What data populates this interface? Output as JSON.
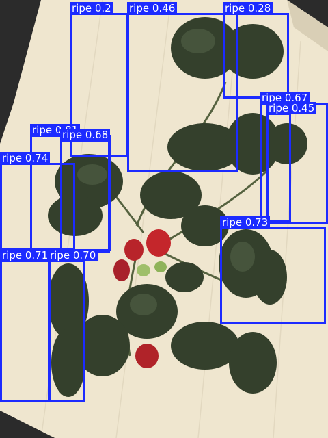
{
  "image": {
    "description_colors": {
      "background": "#2b2b2b",
      "board": "#efe6cf",
      "leaf": "#3a4632",
      "berry": "#c0262c"
    }
  },
  "detections": [
    {
      "label": "ripe 0.2",
      "cls": "ripe",
      "score": 0.2
    },
    {
      "label": "ripe 0.46",
      "cls": "ripe",
      "score": 0.46
    },
    {
      "label": "ripe 0.28",
      "cls": "ripe",
      "score": 0.28
    },
    {
      "label": "ripe 0.67",
      "cls": "ripe",
      "score": 0.67
    },
    {
      "label": "ripe 0.45",
      "cls": "ripe",
      "score": 0.45
    },
    {
      "label": "ripe 0.81",
      "cls": "ripe",
      "score": 0.81
    },
    {
      "label": "ripe 0.68",
      "cls": "ripe",
      "score": 0.68
    },
    {
      "label": "ripe 0.74",
      "cls": "ripe",
      "score": 0.74
    },
    {
      "label": "ripe 0.73",
      "cls": "ripe",
      "score": 0.73
    },
    {
      "label": "ripe 0.71",
      "cls": "ripe",
      "score": 0.71
    },
    {
      "label": "ripe 0.70",
      "cls": "ripe",
      "score": 0.7
    }
  ],
  "colors": {
    "box": "#1c2bff",
    "label_text": "#ffffff"
  }
}
